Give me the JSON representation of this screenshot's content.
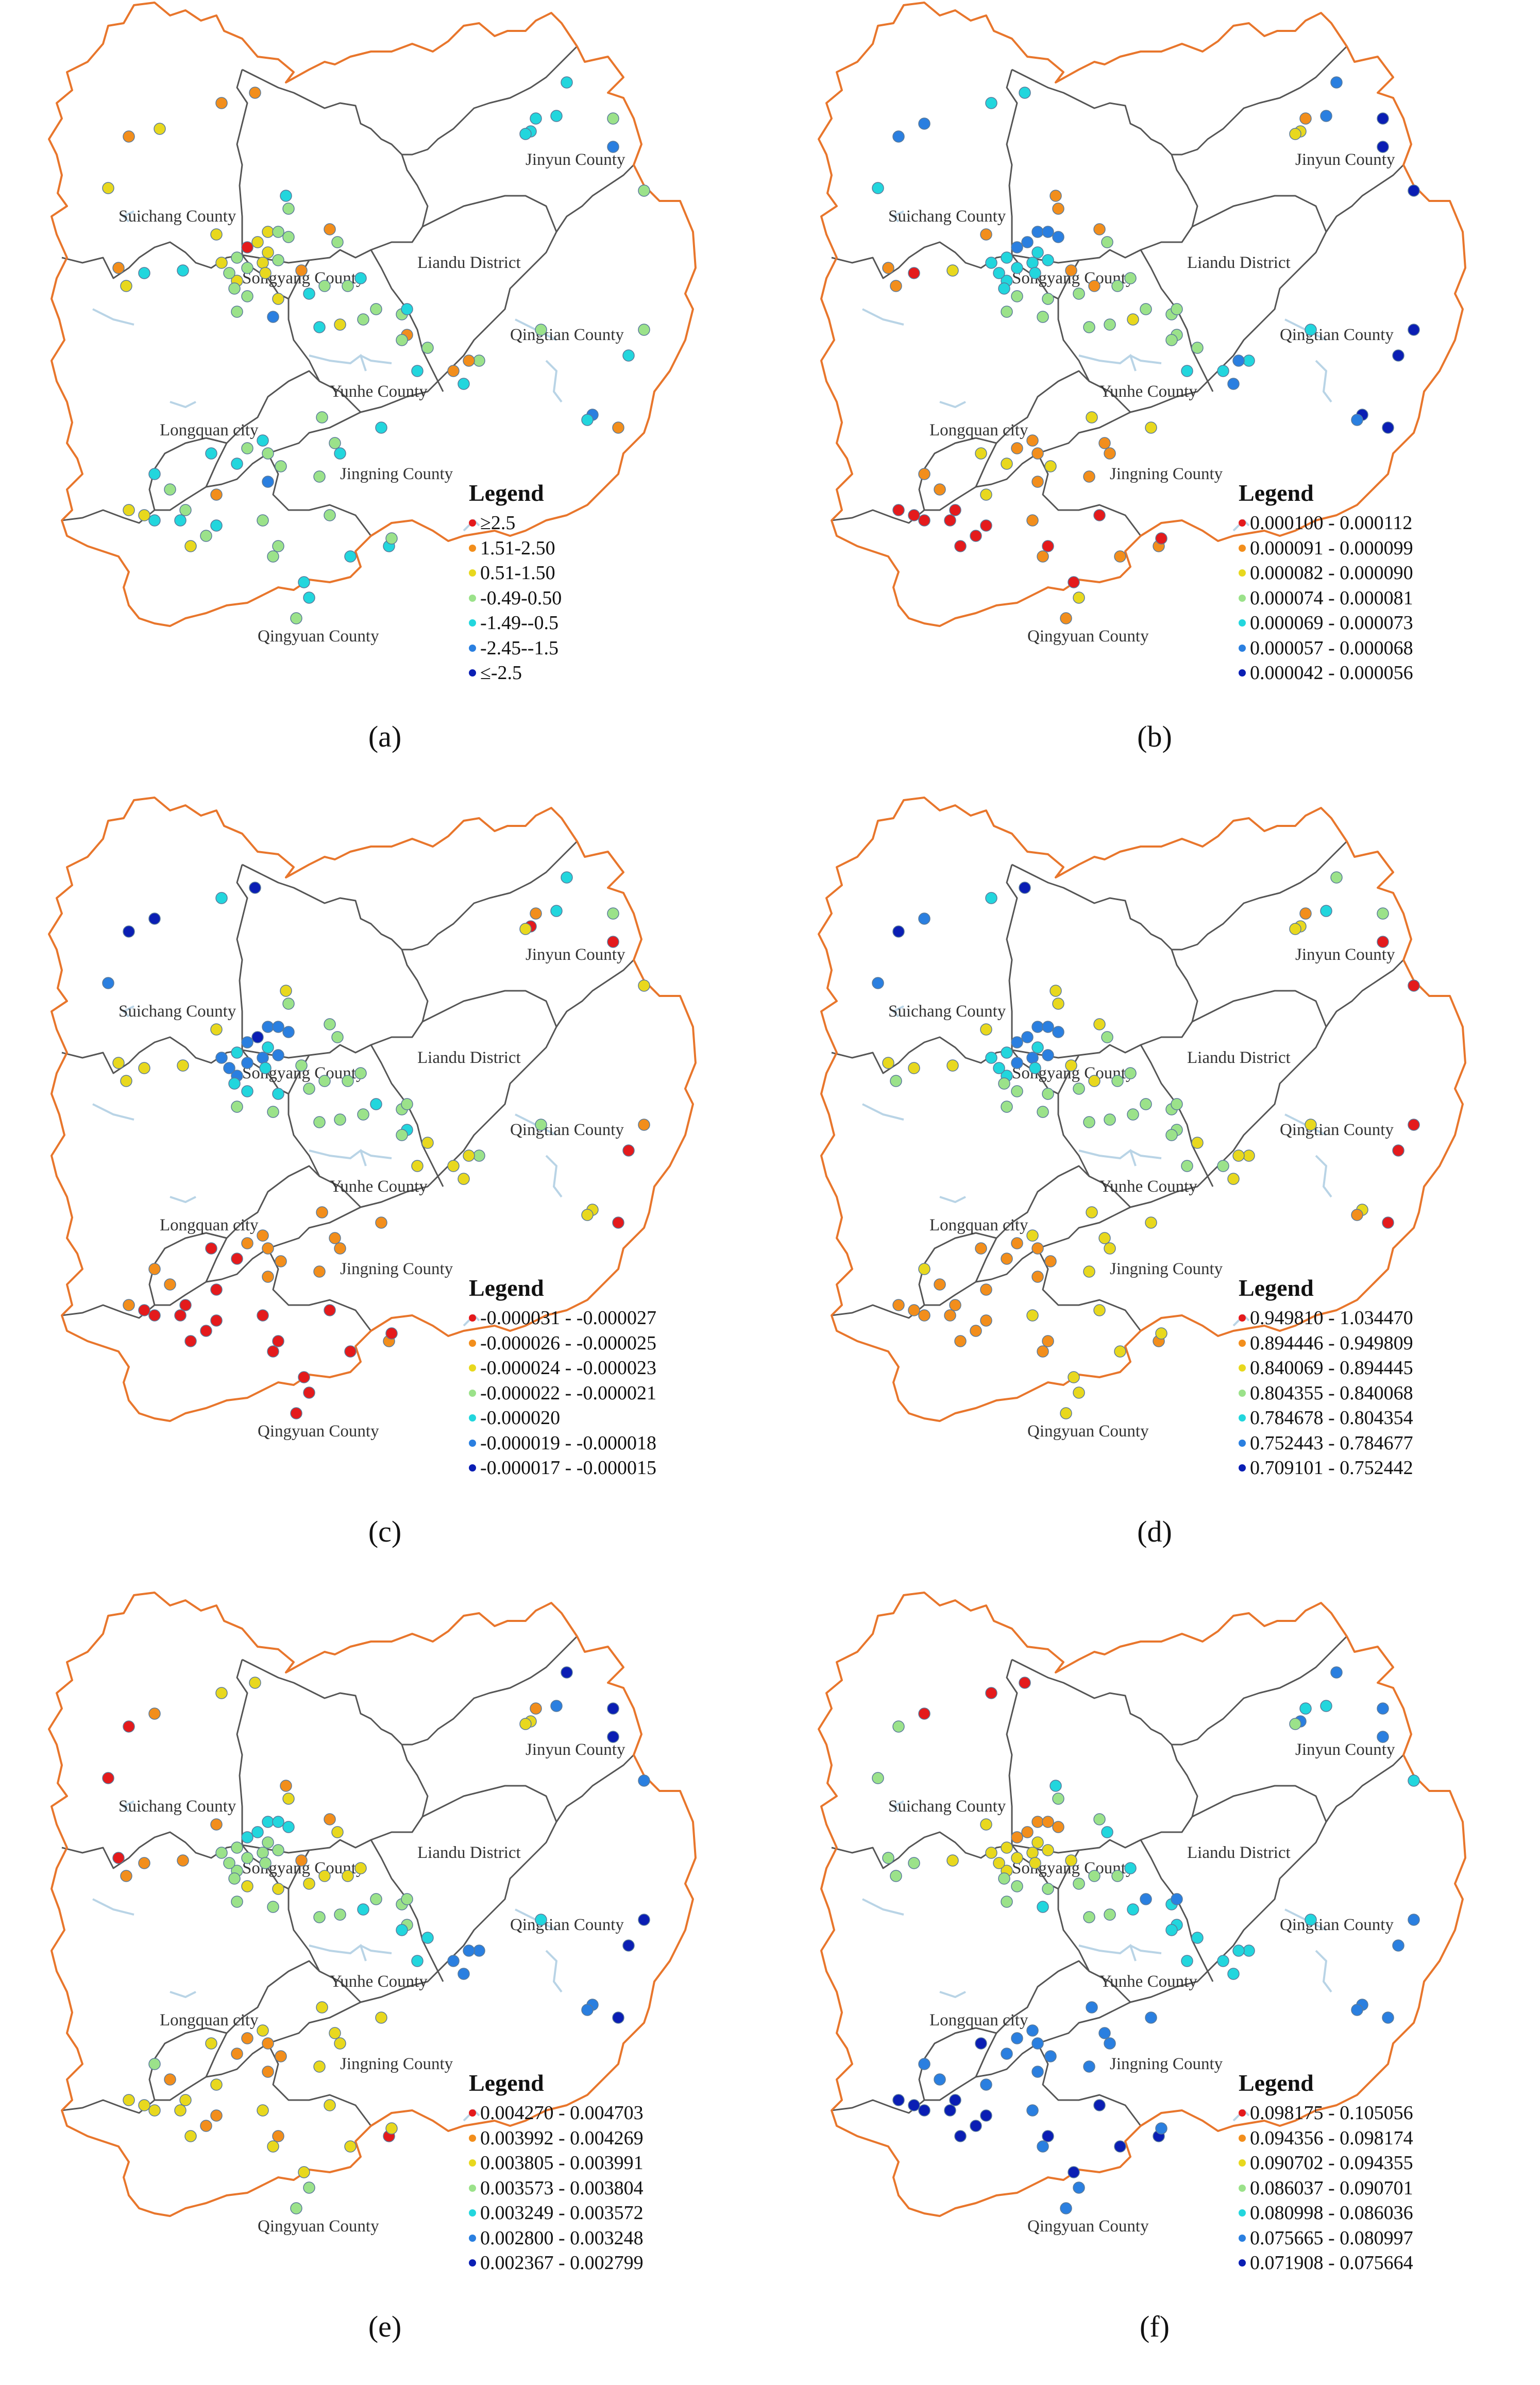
{
  "palette": [
    "#e41a1c",
    "#f28e1c",
    "#e8d81e",
    "#9be28a",
    "#22d6dd",
    "#2a7fe0",
    "#0a1eb4"
  ],
  "county_labels": [
    {
      "text": "Jinyun County"
    },
    {
      "text": "Suichang County"
    },
    {
      "text": "Songyang County"
    },
    {
      "text": "Liandu District"
    },
    {
      "text": "Qingtian County"
    },
    {
      "text": "Yunhe County"
    },
    {
      "text": "Longquan city"
    },
    {
      "text": "Jingning County"
    },
    {
      "text": "Qingyuan County"
    }
  ],
  "panels": [
    {
      "caption": "(a)",
      "legend_title": "Legend",
      "legend": [
        "≥2.5",
        "1.51-2.50",
        "0.51-1.50",
        "-0.49-0.50",
        "-1.49--0.5",
        "-2.45--1.5",
        "≤-2.5"
      ],
      "scheme": "a"
    },
    {
      "caption": "(b)",
      "legend_title": "Legend",
      "legend": [
        "0.000100 - 0.000112",
        "0.000091 - 0.000099",
        "0.000082 - 0.000090",
        "0.000074 - 0.000081",
        "0.000069 - 0.000073",
        "0.000057 - 0.000068",
        "0.000042 - 0.000056"
      ],
      "scheme": "b"
    },
    {
      "caption": "(c)",
      "legend_title": "Legend",
      "legend": [
        "-0.000031 - -0.000027",
        "-0.000026 - -0.000025",
        "-0.000024 - -0.000023",
        "-0.000022 - -0.000021",
        "-0.000020",
        "-0.000019 - -0.000018",
        "-0.000017 - -0.000015"
      ],
      "scheme": "c"
    },
    {
      "caption": "(d)",
      "legend_title": "Legend",
      "legend": [
        "0.949810 - 1.034470",
        "0.894446 - 0.949809",
        "0.840069 - 0.894445",
        "0.804355 - 0.840068",
        "0.784678 - 0.804354",
        "0.752443 - 0.784677",
        "0.709101 - 0.752442"
      ],
      "scheme": "d"
    },
    {
      "caption": "(e)",
      "legend_title": "Legend",
      "legend": [
        "0.004270 - 0.004703",
        "0.003992 - 0.004269",
        "0.003805 - 0.003991",
        "0.003573 - 0.003804",
        "0.003249 - 0.003572",
        "0.002800 - 0.003248",
        "0.002367 - 0.002799"
      ],
      "scheme": "e"
    },
    {
      "caption": "(f)",
      "legend_title": "Legend",
      "legend": [
        "0.098175 - 0.105056",
        "0.094356 - 0.098174",
        "0.090702 - 0.094355",
        "0.086037 - 0.090701",
        "0.080998 - 0.086036",
        "0.075665 - 0.080997",
        "0.071908 - 0.075664"
      ],
      "scheme": "f"
    }
  ]
}
